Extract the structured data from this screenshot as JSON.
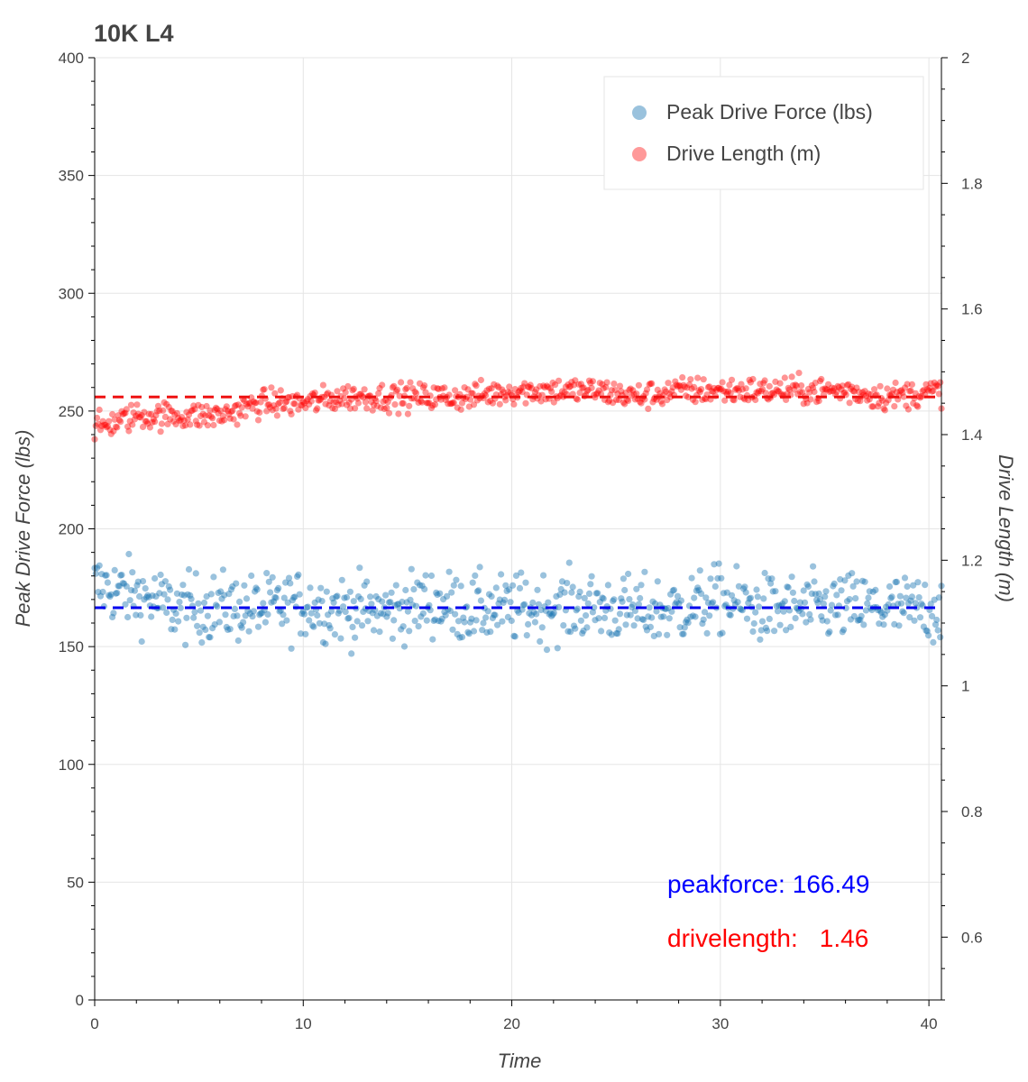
{
  "chart_data": {
    "type": "scatter",
    "title": "10K L4",
    "xlabel": "Time",
    "ylabel": "Peak Drive Force (lbs)",
    "y2label": "Drive Length (m)",
    "xlim": [
      0,
      40.6
    ],
    "ylim": [
      0,
      400
    ],
    "y2lim": [
      0.5,
      2.0
    ],
    "x_ticks": [
      0,
      10,
      20,
      30,
      40
    ],
    "y_ticks": [
      0,
      50,
      100,
      150,
      200,
      250,
      300,
      350,
      400
    ],
    "y2_ticks": [
      0.6,
      0.8,
      1,
      1.2,
      1.4,
      1.6,
      1.8,
      2
    ],
    "grid": true,
    "legend_position": "top-right",
    "series": [
      {
        "name": "Peak Drive Force (lbs)",
        "axis": "left",
        "color": "#1f77b4",
        "mean": 166.49,
        "anchors": [
          [
            0,
            176
          ],
          [
            2,
            172
          ],
          [
            4,
            166
          ],
          [
            6,
            167
          ],
          [
            8,
            166
          ],
          [
            10,
            168
          ],
          [
            12,
            166
          ],
          [
            14,
            165
          ],
          [
            16,
            169
          ],
          [
            18,
            166
          ],
          [
            20,
            166
          ],
          [
            22,
            167
          ],
          [
            24,
            167
          ],
          [
            26,
            165
          ],
          [
            28,
            166
          ],
          [
            30,
            170
          ],
          [
            32,
            166
          ],
          [
            34,
            166
          ],
          [
            36,
            167
          ],
          [
            38,
            166
          ],
          [
            40.6,
            166
          ]
        ],
        "spread": 8,
        "n_points": 720
      },
      {
        "name": "Drive Length (m)",
        "axis": "right",
        "color": "#ff0000",
        "mean": 1.46,
        "anchors": [
          [
            0,
            1.41
          ],
          [
            2,
            1.43
          ],
          [
            4,
            1.43
          ],
          [
            6,
            1.43
          ],
          [
            8,
            1.45
          ],
          [
            10,
            1.45
          ],
          [
            12,
            1.46
          ],
          [
            14,
            1.46
          ],
          [
            16,
            1.46
          ],
          [
            18,
            1.46
          ],
          [
            20,
            1.47
          ],
          [
            22,
            1.47
          ],
          [
            24,
            1.47
          ],
          [
            26,
            1.46
          ],
          [
            28,
            1.47
          ],
          [
            30,
            1.47
          ],
          [
            32,
            1.47
          ],
          [
            34,
            1.47
          ],
          [
            36,
            1.47
          ],
          [
            38,
            1.46
          ],
          [
            40.6,
            1.47
          ]
        ],
        "spread": 0.012,
        "n_points": 720
      }
    ],
    "mean_lines": [
      {
        "series": "Peak Drive Force (lbs)",
        "axis": "left",
        "value": 166.49,
        "color": "#0000ee",
        "style": "dashed"
      },
      {
        "series": "Drive Length (m)",
        "axis": "right",
        "value": 1.46,
        "color": "#ee1111",
        "style": "dashed"
      }
    ],
    "annotations": [
      {
        "label": "peakforce:",
        "value": "166.49",
        "color": "#0000ff"
      },
      {
        "label": "drivelength:",
        "value": "1.46",
        "color": "#ff0000"
      }
    ]
  }
}
